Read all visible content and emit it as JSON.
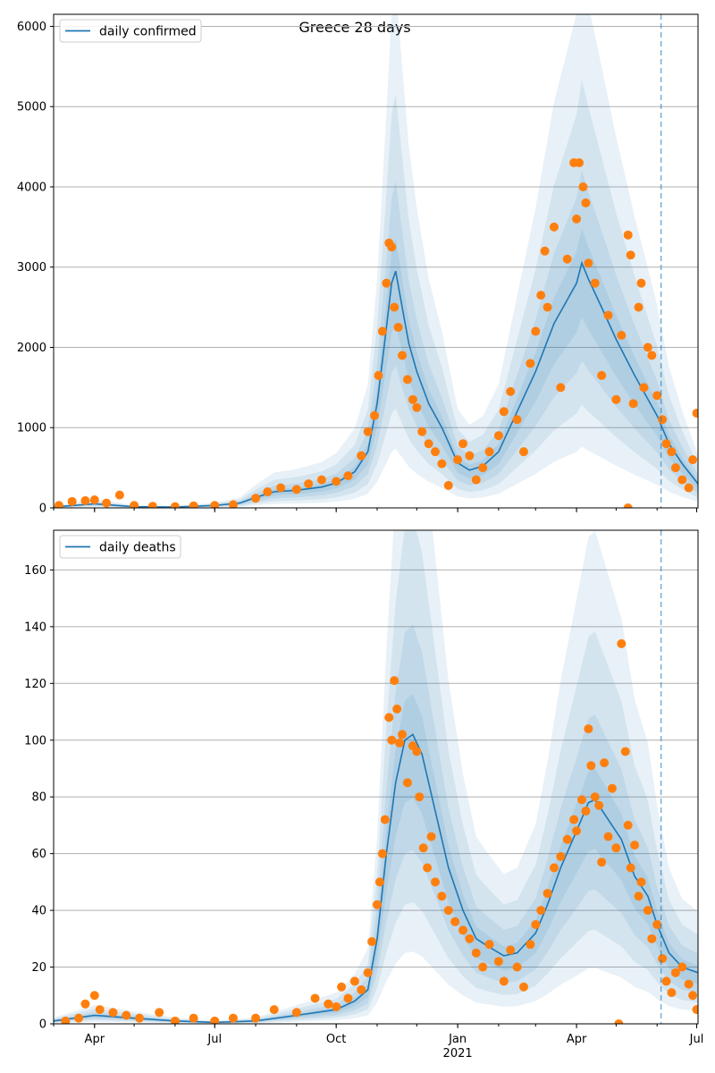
{
  "chart_data": {
    "title": "Greece 28 days",
    "x_ticks": [
      {
        "date": "2020-04-01",
        "label": "Apr"
      },
      {
        "date": "2020-07-01",
        "label": "Jul"
      },
      {
        "date": "2020-10-01",
        "label": "Oct"
      },
      {
        "date": "2021-01-01",
        "label": "Jan"
      },
      {
        "date": "2021-04-01",
        "label": "Apr"
      },
      {
        "date": "2021-07-01",
        "label": "Jul"
      }
    ],
    "x_year_label": "2021",
    "x_range": [
      "2020-03-01",
      "2021-07-02"
    ],
    "forecast_start": "2021-06-04",
    "colors": {
      "line": "#1f77b4",
      "points": "#ff7f0e",
      "band": "#1f77b4",
      "grid": "#b0b0b0",
      "vline": "#1f77b4"
    },
    "panels": [
      {
        "type": "line+scatter",
        "legend": "daily confirmed",
        "legend_position": "top-left",
        "ylim": [
          0,
          6150
        ],
        "y_ticks": [
          0,
          1000,
          2000,
          3000,
          4000,
          5000,
          6000
        ],
        "grid": "horizontal",
        "model_line": [
          [
            "2020-03-01",
            10
          ],
          [
            "2020-04-01",
            50
          ],
          [
            "2020-05-01",
            15
          ],
          [
            "2020-06-01",
            10
          ],
          [
            "2020-07-01",
            30
          ],
          [
            "2020-07-20",
            60
          ],
          [
            "2020-08-01",
            130
          ],
          [
            "2020-08-15",
            200
          ],
          [
            "2020-09-01",
            220
          ],
          [
            "2020-09-20",
            260
          ],
          [
            "2020-10-01",
            310
          ],
          [
            "2020-10-15",
            450
          ],
          [
            "2020-10-25",
            700
          ],
          [
            "2020-11-01",
            1300
          ],
          [
            "2020-11-07",
            2100
          ],
          [
            "2020-11-12",
            2800
          ],
          [
            "2020-11-15",
            2950
          ],
          [
            "2020-11-20",
            2500
          ],
          [
            "2020-11-25",
            2050
          ],
          [
            "2020-12-01",
            1700
          ],
          [
            "2020-12-10",
            1300
          ],
          [
            "2020-12-20",
            1000
          ],
          [
            "2021-01-01",
            560
          ],
          [
            "2021-01-10",
            470
          ],
          [
            "2021-01-20",
            520
          ],
          [
            "2021-02-01",
            700
          ],
          [
            "2021-02-15",
            1200
          ],
          [
            "2021-03-01",
            1700
          ],
          [
            "2021-03-15",
            2300
          ],
          [
            "2021-04-01",
            2800
          ],
          [
            "2021-04-05",
            3050
          ],
          [
            "2021-04-10",
            2850
          ],
          [
            "2021-04-20",
            2500
          ],
          [
            "2021-05-01",
            2100
          ],
          [
            "2021-05-15",
            1650
          ],
          [
            "2021-06-01",
            1150
          ],
          [
            "2021-06-10",
            800
          ],
          [
            "2021-06-20",
            550
          ],
          [
            "2021-07-02",
            300
          ]
        ],
        "observed": [
          [
            "2020-03-05",
            30
          ],
          [
            "2020-03-15",
            80
          ],
          [
            "2020-03-25",
            90
          ],
          [
            "2020-04-01",
            100
          ],
          [
            "2020-04-10",
            60
          ],
          [
            "2020-04-20",
            160
          ],
          [
            "2020-05-01",
            30
          ],
          [
            "2020-05-15",
            20
          ],
          [
            "2020-06-01",
            15
          ],
          [
            "2020-06-15",
            25
          ],
          [
            "2020-07-01",
            30
          ],
          [
            "2020-07-15",
            40
          ],
          [
            "2020-08-01",
            120
          ],
          [
            "2020-08-10",
            200
          ],
          [
            "2020-08-20",
            250
          ],
          [
            "2020-09-01",
            230
          ],
          [
            "2020-09-10",
            300
          ],
          [
            "2020-09-20",
            350
          ],
          [
            "2020-10-01",
            330
          ],
          [
            "2020-10-10",
            400
          ],
          [
            "2020-10-20",
            650
          ],
          [
            "2020-10-25",
            950
          ],
          [
            "2020-10-30",
            1150
          ],
          [
            "2020-11-02",
            1650
          ],
          [
            "2020-11-05",
            2200
          ],
          [
            "2020-11-08",
            2800
          ],
          [
            "2020-11-10",
            3300
          ],
          [
            "2020-11-12",
            3250
          ],
          [
            "2020-11-14",
            2500
          ],
          [
            "2020-11-17",
            2250
          ],
          [
            "2020-11-20",
            1900
          ],
          [
            "2020-11-24",
            1600
          ],
          [
            "2020-11-28",
            1350
          ],
          [
            "2020-12-01",
            1250
          ],
          [
            "2020-12-05",
            950
          ],
          [
            "2020-12-10",
            800
          ],
          [
            "2020-12-15",
            700
          ],
          [
            "2020-12-20",
            550
          ],
          [
            "2020-12-25",
            280
          ],
          [
            "2021-01-01",
            600
          ],
          [
            "2021-01-05",
            800
          ],
          [
            "2021-01-10",
            650
          ],
          [
            "2021-01-15",
            350
          ],
          [
            "2021-01-20",
            500
          ],
          [
            "2021-01-25",
            700
          ],
          [
            "2021-02-01",
            900
          ],
          [
            "2021-02-05",
            1200
          ],
          [
            "2021-02-10",
            1450
          ],
          [
            "2021-02-15",
            1100
          ],
          [
            "2021-02-20",
            700
          ],
          [
            "2021-02-25",
            1800
          ],
          [
            "2021-03-01",
            2200
          ],
          [
            "2021-03-05",
            2650
          ],
          [
            "2021-03-08",
            3200
          ],
          [
            "2021-03-10",
            2500
          ],
          [
            "2021-03-15",
            3500
          ],
          [
            "2021-03-20",
            1500
          ],
          [
            "2021-03-25",
            3100
          ],
          [
            "2021-03-30",
            4300
          ],
          [
            "2021-04-01",
            3600
          ],
          [
            "2021-04-03",
            4300
          ],
          [
            "2021-04-06",
            4000
          ],
          [
            "2021-04-08",
            3800
          ],
          [
            "2021-04-10",
            3050
          ],
          [
            "2021-04-15",
            2800
          ],
          [
            "2021-04-20",
            1650
          ],
          [
            "2021-04-25",
            2400
          ],
          [
            "2021-05-01",
            1350
          ],
          [
            "2021-05-05",
            2150
          ],
          [
            "2021-05-10",
            3400
          ],
          [
            "2021-05-12",
            3150
          ],
          [
            "2021-05-14",
            1300
          ],
          [
            "2021-05-18",
            2500
          ],
          [
            "2021-05-20",
            2800
          ],
          [
            "2021-05-22",
            1500
          ],
          [
            "2021-05-25",
            2000
          ],
          [
            "2021-05-28",
            1900
          ],
          [
            "2021-06-01",
            1400
          ],
          [
            "2021-06-05",
            1100
          ],
          [
            "2021-06-08",
            800
          ],
          [
            "2021-06-12",
            700
          ],
          [
            "2021-06-15",
            500
          ],
          [
            "2021-06-20",
            350
          ],
          [
            "2021-06-25",
            250
          ],
          [
            "2021-06-28",
            600
          ],
          [
            "2021-07-01",
            1180
          ],
          [
            "2021-05-10",
            0
          ]
        ]
      },
      {
        "type": "line+scatter",
        "legend": "daily deaths",
        "legend_position": "top-left",
        "ylim": [
          0,
          174
        ],
        "y_ticks": [
          0,
          20,
          40,
          60,
          80,
          100,
          120,
          140,
          160
        ],
        "grid": "horizontal",
        "model_line": [
          [
            "2020-03-01",
            1
          ],
          [
            "2020-04-01",
            3
          ],
          [
            "2020-05-01",
            2
          ],
          [
            "2020-06-01",
            1
          ],
          [
            "2020-07-01",
            0.5
          ],
          [
            "2020-08-01",
            1
          ],
          [
            "2020-09-01",
            3
          ],
          [
            "2020-10-01",
            5
          ],
          [
            "2020-10-15",
            8
          ],
          [
            "2020-10-25",
            12
          ],
          [
            "2020-11-01",
            30
          ],
          [
            "2020-11-08",
            60
          ],
          [
            "2020-11-15",
            85
          ],
          [
            "2020-11-22",
            100
          ],
          [
            "2020-11-28",
            102
          ],
          [
            "2020-12-05",
            95
          ],
          [
            "2020-12-15",
            75
          ],
          [
            "2020-12-25",
            55
          ],
          [
            "2021-01-05",
            40
          ],
          [
            "2021-01-15",
            30
          ],
          [
            "2021-01-25",
            27
          ],
          [
            "2021-02-05",
            24
          ],
          [
            "2021-02-15",
            25
          ],
          [
            "2021-03-01",
            32
          ],
          [
            "2021-03-10",
            42
          ],
          [
            "2021-03-20",
            55
          ],
          [
            "2021-04-01",
            68
          ],
          [
            "2021-04-10",
            78
          ],
          [
            "2021-04-15",
            79
          ],
          [
            "2021-04-25",
            72
          ],
          [
            "2021-05-05",
            65
          ],
          [
            "2021-05-15",
            52
          ],
          [
            "2021-05-25",
            45
          ],
          [
            "2021-06-01",
            35
          ],
          [
            "2021-06-10",
            25
          ],
          [
            "2021-06-20",
            20
          ],
          [
            "2021-07-02",
            18
          ]
        ],
        "observed": [
          [
            "2020-03-10",
            1
          ],
          [
            "2020-03-20",
            2
          ],
          [
            "2020-03-25",
            7
          ],
          [
            "2020-04-01",
            10
          ],
          [
            "2020-04-05",
            5
          ],
          [
            "2020-04-15",
            4
          ],
          [
            "2020-04-25",
            3
          ],
          [
            "2020-05-05",
            2
          ],
          [
            "2020-05-20",
            4
          ],
          [
            "2020-06-01",
            1
          ],
          [
            "2020-06-15",
            2
          ],
          [
            "2020-07-01",
            1
          ],
          [
            "2020-07-15",
            2
          ],
          [
            "2020-08-01",
            2
          ],
          [
            "2020-08-15",
            5
          ],
          [
            "2020-09-01",
            4
          ],
          [
            "2020-09-15",
            9
          ],
          [
            "2020-09-25",
            7
          ],
          [
            "2020-10-01",
            6
          ],
          [
            "2020-10-05",
            13
          ],
          [
            "2020-10-10",
            9
          ],
          [
            "2020-10-15",
            15
          ],
          [
            "2020-10-20",
            12
          ],
          [
            "2020-10-25",
            18
          ],
          [
            "2020-10-28",
            29
          ],
          [
            "2020-11-01",
            42
          ],
          [
            "2020-11-03",
            50
          ],
          [
            "2020-11-05",
            60
          ],
          [
            "2020-11-07",
            72
          ],
          [
            "2020-11-10",
            108
          ],
          [
            "2020-11-12",
            100
          ],
          [
            "2020-11-14",
            121
          ],
          [
            "2020-11-16",
            111
          ],
          [
            "2020-11-18",
            99
          ],
          [
            "2020-11-20",
            102
          ],
          [
            "2020-11-24",
            85
          ],
          [
            "2020-11-28",
            98
          ],
          [
            "2020-12-01",
            96
          ],
          [
            "2020-12-03",
            80
          ],
          [
            "2020-12-06",
            62
          ],
          [
            "2020-12-09",
            55
          ],
          [
            "2020-12-12",
            66
          ],
          [
            "2020-12-15",
            50
          ],
          [
            "2020-12-20",
            45
          ],
          [
            "2020-12-25",
            40
          ],
          [
            "2020-12-30",
            36
          ],
          [
            "2021-01-05",
            33
          ],
          [
            "2021-01-10",
            30
          ],
          [
            "2021-01-15",
            25
          ],
          [
            "2021-01-20",
            20
          ],
          [
            "2021-01-25",
            28
          ],
          [
            "2021-02-01",
            22
          ],
          [
            "2021-02-05",
            15
          ],
          [
            "2021-02-10",
            26
          ],
          [
            "2021-02-15",
            20
          ],
          [
            "2021-02-20",
            13
          ],
          [
            "2021-02-25",
            28
          ],
          [
            "2021-03-01",
            35
          ],
          [
            "2021-03-05",
            40
          ],
          [
            "2021-03-10",
            46
          ],
          [
            "2021-03-15",
            55
          ],
          [
            "2021-03-20",
            59
          ],
          [
            "2021-03-25",
            65
          ],
          [
            "2021-03-30",
            72
          ],
          [
            "2021-04-01",
            68
          ],
          [
            "2021-04-05",
            79
          ],
          [
            "2021-04-08",
            75
          ],
          [
            "2021-04-10",
            104
          ],
          [
            "2021-04-12",
            91
          ],
          [
            "2021-04-15",
            80
          ],
          [
            "2021-04-18",
            77
          ],
          [
            "2021-04-20",
            57
          ],
          [
            "2021-04-22",
            92
          ],
          [
            "2021-04-25",
            66
          ],
          [
            "2021-04-28",
            83
          ],
          [
            "2021-05-01",
            62
          ],
          [
            "2021-05-05",
            134
          ],
          [
            "2021-05-08",
            96
          ],
          [
            "2021-05-10",
            70
          ],
          [
            "2021-05-12",
            55
          ],
          [
            "2021-05-15",
            63
          ],
          [
            "2021-05-18",
            45
          ],
          [
            "2021-05-20",
            50
          ],
          [
            "2021-05-25",
            40
          ],
          [
            "2021-05-28",
            30
          ],
          [
            "2021-06-01",
            35
          ],
          [
            "2021-06-05",
            23
          ],
          [
            "2021-06-08",
            15
          ],
          [
            "2021-06-12",
            11
          ],
          [
            "2021-06-15",
            18
          ],
          [
            "2021-06-20",
            20
          ],
          [
            "2021-06-25",
            14
          ],
          [
            "2021-06-28",
            10
          ],
          [
            "2021-07-01",
            5
          ],
          [
            "2021-05-03",
            0
          ]
        ]
      }
    ]
  }
}
